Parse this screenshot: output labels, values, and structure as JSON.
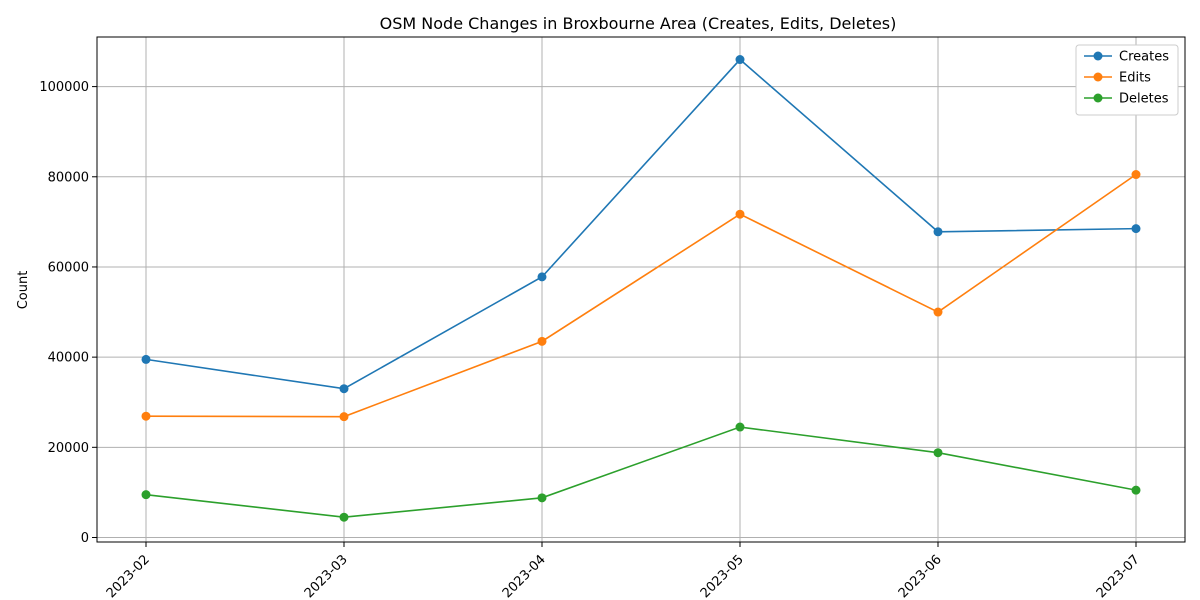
{
  "chart_data": {
    "type": "line",
    "title": "OSM Node Changes in Broxbourne Area (Creates, Edits, Deletes)",
    "xlabel": "",
    "ylabel": "Count",
    "categories": [
      "2023-02",
      "2023-03",
      "2023-04",
      "2023-05",
      "2023-06",
      "2023-07"
    ],
    "ylim": [
      -1000,
      111000
    ],
    "yticks": [
      0,
      20000,
      40000,
      60000,
      80000,
      100000
    ],
    "grid": true,
    "legend_position": "top-right",
    "series": [
      {
        "name": "Creates",
        "color": "#1f77b4",
        "values": [
          39500,
          33000,
          57800,
          106000,
          67800,
          68500
        ]
      },
      {
        "name": "Edits",
        "color": "#ff7f0e",
        "values": [
          26900,
          26800,
          43500,
          71700,
          50000,
          80500
        ]
      },
      {
        "name": "Deletes",
        "color": "#2ca02c",
        "values": [
          9500,
          4500,
          8800,
          24500,
          18800,
          10500
        ]
      }
    ]
  }
}
